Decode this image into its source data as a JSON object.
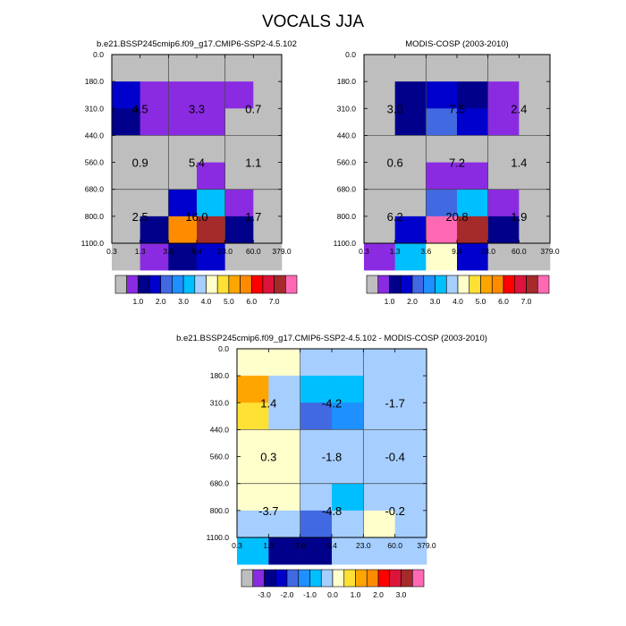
{
  "figure": {
    "title": "VOCALS JJA"
  },
  "palettes": {
    "abs": [
      "#BEBEBE",
      "#8A2BE2",
      "#00008B",
      "#0000CD",
      "#4169E1",
      "#1E90FF",
      "#00BFFF",
      "#A6CEFF",
      "#FFFFCC",
      "#FFE135",
      "#FFA500",
      "#FF8C00",
      "#FF0000",
      "#DC143C",
      "#A52A2A",
      "#FF69B4"
    ],
    "diff": [
      "#BEBEBE",
      "#8A2BE2",
      "#00008B",
      "#0000CD",
      "#4169E1",
      "#1E90FF",
      "#00BFFF",
      "#A6CEFF",
      "#FFFFCC",
      "#FFE135",
      "#FFA500",
      "#FF8C00",
      "#FF0000",
      "#DC143C",
      "#A52A2A",
      "#FF69B4"
    ]
  },
  "chart_data": [
    {
      "type": "heatmap",
      "title": "b.e21.BSSP245cmip6.f09_g17.CMIP6-SSP2-4.5.102",
      "x_edges": [
        "0.3",
        "1.3",
        "3.6",
        "9.4",
        "23.0",
        "60.0",
        "379.0"
      ],
      "y_edges": [
        "0.0",
        "180.0",
        "310.0",
        "440.0",
        "560.0",
        "680.0",
        "800.0",
        "1100.0"
      ],
      "cells": [
        [
          0,
          0,
          0,
          0,
          0,
          0
        ],
        [
          3,
          1,
          1,
          1,
          1,
          0
        ],
        [
          2,
          1,
          1,
          1,
          0,
          0
        ],
        [
          0,
          0,
          0,
          0,
          0,
          0
        ],
        [
          0,
          0,
          0,
          1,
          0,
          0
        ],
        [
          0,
          0,
          3,
          6,
          1,
          0
        ],
        [
          0,
          2,
          11,
          14,
          2,
          0
        ],
        [
          0,
          1,
          2,
          3,
          0,
          0
        ]
      ],
      "box_values": [
        [
          "4.5",
          "3.3",
          "0.7"
        ],
        [
          "0.9",
          "5.4",
          "1.1"
        ],
        [
          "2.5",
          "16.0",
          "1.7"
        ]
      ],
      "colorbar_labels": [
        "1.0",
        "2.0",
        "3.0",
        "4.0",
        "5.0",
        "6.0",
        "7.0"
      ]
    },
    {
      "type": "heatmap",
      "title": "MODIS-COSP (2003-2010)",
      "x_edges": [
        "0.3",
        "1.3",
        "3.6",
        "9.4",
        "23.0",
        "60.0",
        "379.0"
      ],
      "y_edges": [
        "0.0",
        "180.0",
        "310.0",
        "440.0",
        "560.0",
        "680.0",
        "800.0",
        "1100.0"
      ],
      "cells": [
        [
          0,
          0,
          0,
          0,
          0,
          0
        ],
        [
          0,
          2,
          3,
          2,
          1,
          0
        ],
        [
          0,
          2,
          4,
          3,
          1,
          0
        ],
        [
          0,
          0,
          0,
          0,
          0,
          0
        ],
        [
          0,
          0,
          1,
          1,
          0,
          0
        ],
        [
          0,
          0,
          4,
          6,
          1,
          0
        ],
        [
          0,
          3,
          15,
          14,
          2,
          0
        ],
        [
          1,
          6,
          8,
          3,
          0,
          0
        ]
      ],
      "box_values": [
        [
          "3.0",
          "7.5",
          "2.4"
        ],
        [
          "0.6",
          "7.2",
          "1.4"
        ],
        [
          "6.2",
          "20.8",
          "1.9"
        ]
      ],
      "colorbar_labels": [
        "1.0",
        "2.0",
        "3.0",
        "4.0",
        "5.0",
        "6.0",
        "7.0"
      ]
    },
    {
      "type": "heatmap",
      "title": "b.e21.BSSP245cmip6.f09_g17.CMIP6-SSP2-4.5.102 - MODIS-COSP (2003-2010)",
      "x_edges": [
        "0.3",
        "1.3",
        "3.6",
        "9.4",
        "23.0",
        "60.0",
        "379.0"
      ],
      "y_edges": [
        "0.0",
        "180.0",
        "310.0",
        "440.0",
        "560.0",
        "680.0",
        "800.0",
        "1100.0"
      ],
      "cells": [
        [
          8,
          8,
          7,
          7,
          7,
          7
        ],
        [
          10,
          7,
          6,
          6,
          7,
          7
        ],
        [
          9,
          7,
          4,
          5,
          7,
          7
        ],
        [
          8,
          8,
          7,
          7,
          7,
          7
        ],
        [
          8,
          8,
          7,
          7,
          7,
          7
        ],
        [
          8,
          8,
          7,
          6,
          7,
          7
        ],
        [
          7,
          7,
          4,
          7,
          8,
          7
        ],
        [
          6,
          2,
          2,
          7,
          7,
          7
        ]
      ],
      "box_values": [
        [
          "1.4",
          "-4.2",
          "-1.7"
        ],
        [
          "0.3",
          "-1.8",
          "-0.4"
        ],
        [
          "-3.7",
          "-4.8",
          "-0.2"
        ]
      ],
      "colorbar_labels": [
        "-3.0",
        "-2.0",
        "-1.0",
        "0.0",
        "1.0",
        "2.0",
        "3.0"
      ]
    }
  ]
}
